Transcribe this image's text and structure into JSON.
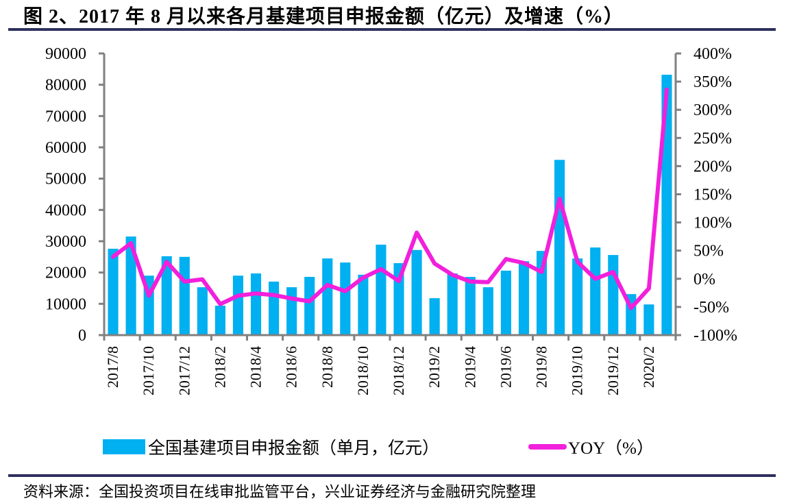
{
  "title": "图 2、2017 年 8 月以来各月基建项目申报金额（亿元）及增速（%）",
  "source": "资料来源：全国投资项目在线审批监管平台，兴业证券经济与金融研究院整理",
  "colors": {
    "bar": "#00b0f0",
    "line": "#f21fdc",
    "axis": "#808080",
    "rule": "#2e2f5c"
  },
  "legend": {
    "bar_label": "全国基建项目申报金额（单月，亿元）",
    "line_label": "YOY（%）"
  },
  "chart_data": {
    "type": "bar+line",
    "title": "图 2、2017 年 8 月以来各月基建项目申报金额（亿元）及增速（%）",
    "xlabel": "",
    "ylabel": "",
    "y2label": "",
    "legend_position": "bottom",
    "grid": false,
    "categories": [
      "2017/8",
      "2017/9",
      "2017/10",
      "2017/11",
      "2017/12",
      "2018/1",
      "2018/2",
      "2018/3",
      "2018/4",
      "2018/5",
      "2018/6",
      "2018/7",
      "2018/8",
      "2018/9",
      "2018/10",
      "2018/11",
      "2018/12",
      "2019/1",
      "2019/2",
      "2019/3",
      "2019/4",
      "2019/5",
      "2019/6",
      "2019/7",
      "2019/8",
      "2019/9",
      "2019/10",
      "2019/11",
      "2019/12",
      "2020/1",
      "2020/2",
      "2020/3"
    ],
    "x_tick_labels": [
      "2017/8",
      "2017/10",
      "2017/12",
      "2018/2",
      "2018/4",
      "2018/6",
      "2018/8",
      "2018/10",
      "2018/12",
      "2019/2",
      "2019/4",
      "2019/6",
      "2019/8",
      "2019/10",
      "2019/12",
      "2020/2"
    ],
    "ylim": [
      0,
      90000
    ],
    "y_ticks": [
      "0",
      "10000",
      "20000",
      "30000",
      "40000",
      "50000",
      "60000",
      "70000",
      "80000",
      "90000"
    ],
    "y2lim": [
      -100,
      400
    ],
    "y2_ticks": [
      "-100%",
      "-50%",
      "0%",
      "50%",
      "100%",
      "150%",
      "200%",
      "250%",
      "300%",
      "350%",
      "400%"
    ],
    "series": [
      {
        "name": "全国基建项目申报金额（单月，亿元）",
        "type": "bar",
        "axis": "left",
        "values": [
          27600,
          31500,
          19000,
          25200,
          25000,
          15300,
          9400,
          19000,
          19700,
          17100,
          15300,
          18600,
          24500,
          23200,
          19300,
          28900,
          23000,
          27200,
          11800,
          19700,
          18600,
          15300,
          20600,
          23600,
          26900,
          56000,
          24500,
          28000,
          25600,
          13100,
          9800,
          83200
        ]
      },
      {
        "name": "YOY（%）",
        "type": "line",
        "axis": "right",
        "values": [
          39,
          63,
          -30,
          30,
          -5,
          -1,
          -45,
          -30,
          -26,
          -29,
          -35,
          -40,
          -11,
          -22,
          2,
          17,
          -4,
          82,
          27,
          7,
          -5,
          -6,
          35,
          28,
          12,
          142,
          30,
          0,
          12,
          -52,
          -17,
          336
        ]
      }
    ]
  }
}
